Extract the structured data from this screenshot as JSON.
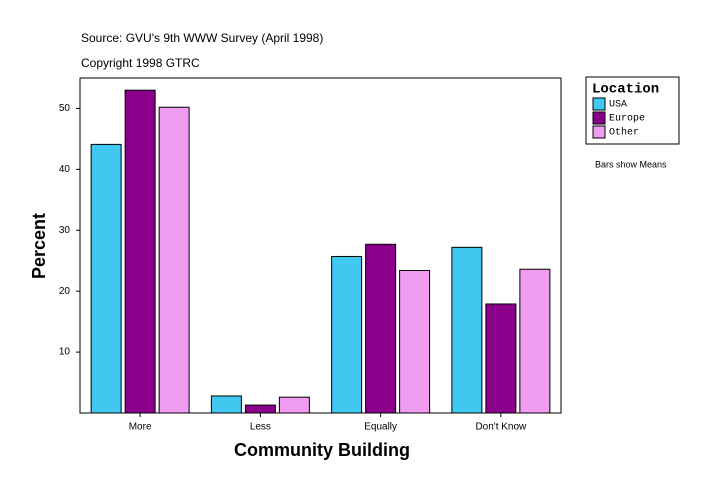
{
  "chart_data": {
    "type": "bar",
    "title": "Source: GVU's 9th WWW Survey (April 1998)",
    "subtitle": "Copyright 1998 GTRC",
    "x_label": "Community Building",
    "y_label": "Percent",
    "legend_title": "Location",
    "note": "Bars show Means",
    "categories": [
      "More",
      "Less",
      "Equally",
      "Don't Know"
    ],
    "series": [
      {
        "name": "USA",
        "color": "#40c8f0",
        "values": [
          44.1,
          2.8,
          25.7,
          27.2
        ]
      },
      {
        "name": "Europe",
        "color": "#8b008b",
        "values": [
          53.0,
          1.3,
          27.7,
          17.9
        ]
      },
      {
        "name": "Other",
        "color": "#f09cf0",
        "values": [
          50.2,
          2.6,
          23.4,
          23.6
        ]
      }
    ],
    "ylim": [
      0,
      55
    ],
    "yticks": [
      10,
      20,
      30,
      40,
      50
    ]
  }
}
